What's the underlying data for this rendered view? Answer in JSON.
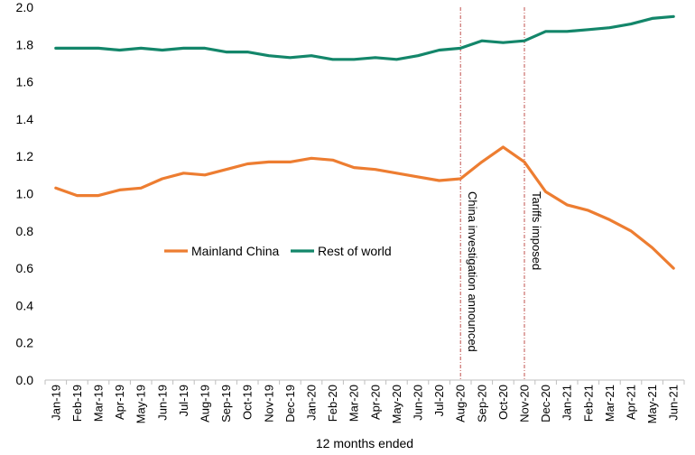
{
  "chart_data": {
    "type": "line",
    "title": "",
    "xlabel": "12 months ended",
    "ylabel": "",
    "ylim": [
      0,
      2.0
    ],
    "yticks": [
      "0.0",
      "0.2",
      "0.4",
      "0.6",
      "0.8",
      "1.0",
      "1.2",
      "1.4",
      "1.6",
      "1.8",
      "2.0"
    ],
    "grid": false,
    "legend_position": "middle-left",
    "categories": [
      "Jan-19",
      "Feb-19",
      "Mar-19",
      "Apr-19",
      "May-19",
      "Jun-19",
      "Jul-19",
      "Aug-19",
      "Sep-19",
      "Oct-19",
      "Nov-19",
      "Dec-19",
      "Jan-20",
      "Feb-20",
      "Mar-20",
      "Apr-20",
      "May-20",
      "Jun-20",
      "Jul-20",
      "Aug-20",
      "Sep-20",
      "Oct-20",
      "Nov-20",
      "Dec-20",
      "Jan-21",
      "Feb-21",
      "Mar-21",
      "Apr-21",
      "May-21",
      "Jun-21"
    ],
    "series": [
      {
        "name": "Mainland China",
        "color": "#ED7D31",
        "values": [
          1.03,
          0.99,
          0.99,
          1.02,
          1.03,
          1.08,
          1.11,
          1.1,
          1.13,
          1.16,
          1.17,
          1.17,
          1.19,
          1.18,
          1.14,
          1.13,
          1.11,
          1.09,
          1.07,
          1.08,
          1.17,
          1.25,
          1.17,
          1.01,
          0.94,
          0.91,
          0.86,
          0.8,
          0.71,
          0.6
        ]
      },
      {
        "name": "Rest of world",
        "color": "#13866A",
        "values": [
          1.78,
          1.78,
          1.78,
          1.77,
          1.78,
          1.77,
          1.78,
          1.78,
          1.76,
          1.76,
          1.74,
          1.73,
          1.74,
          1.72,
          1.72,
          1.73,
          1.72,
          1.74,
          1.77,
          1.78,
          1.82,
          1.81,
          1.82,
          1.87,
          1.87,
          1.88,
          1.89,
          1.91,
          1.94,
          1.95
        ]
      }
    ],
    "annotations": [
      {
        "category": "Aug-20",
        "text": "China investigation announced",
        "color": "#C0504D"
      },
      {
        "category": "Nov-20",
        "text": "Tariffs imposed",
        "color": "#C0504D"
      }
    ]
  }
}
